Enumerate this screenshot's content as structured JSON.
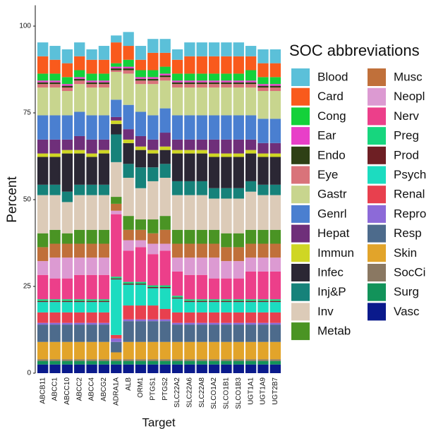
{
  "chart_data": {
    "type": "stacked_bar",
    "x_label": "Target",
    "y_label": "Percent",
    "legend_title": "SOC abbreviations",
    "categories": [
      "ABCB11",
      "ABCC1",
      "ABCC10",
      "ABCC2",
      "ABCC4",
      "ABCG2",
      "ADRA1A",
      "ALB",
      "ORM1",
      "PTGS1",
      "PTGS2",
      "SLC22A2",
      "SLC22A6",
      "SLC22A8",
      "SLCO1A2",
      "SLCO1B1",
      "SLCO1B3",
      "UGT1A1",
      "UGT1A9",
      "UGT2B7"
    ],
    "ylim": [
      0,
      106
    ],
    "yticks": [
      0,
      25,
      50,
      75,
      100
    ],
    "series": [
      {
        "name": "Blood",
        "color": "#5bc0d9",
        "values": [
          4,
          4,
          4,
          4,
          3,
          4,
          2,
          4,
          4,
          4,
          4,
          3,
          4,
          4,
          4,
          4,
          4,
          3,
          4,
          4
        ]
      },
      {
        "name": "Card",
        "color": "#f95a1c",
        "values": [
          5,
          4,
          4,
          4,
          4,
          4,
          6,
          4,
          3,
          5,
          4,
          4,
          5,
          5,
          5,
          5,
          5,
          4,
          4,
          4
        ]
      },
      {
        "name": "Cong",
        "color": "#13d13a",
        "values": [
          2,
          2,
          2,
          2,
          2,
          2,
          1,
          2,
          2,
          2,
          2,
          2,
          2,
          2,
          2,
          2,
          2,
          3,
          2,
          2
        ]
      },
      {
        "name": "Ear",
        "color": "#e83fc8",
        "values": [
          0.5,
          0.5,
          0.5,
          0.5,
          0.5,
          0.5,
          0.5,
          0.5,
          0.5,
          0.5,
          0.5,
          0.5,
          0.5,
          0.5,
          0.5,
          0.5,
          0.5,
          0.5,
          0.5,
          0.5
        ]
      },
      {
        "name": "Endo",
        "color": "#2e4015",
        "values": [
          0.5,
          0.5,
          0.5,
          0.5,
          0.5,
          0.5,
          0.5,
          0.5,
          0.5,
          0.5,
          0.5,
          0.5,
          0.5,
          0.5,
          0.5,
          0.5,
          0.5,
          0.5,
          0.5,
          0.5
        ]
      },
      {
        "name": "Eye",
        "color": "#d9737a",
        "values": [
          1,
          1,
          1,
          1,
          1,
          1,
          0.5,
          1,
          1,
          1,
          1,
          1,
          1,
          1,
          1,
          1,
          1,
          1,
          1,
          1
        ]
      },
      {
        "name": "Gastr",
        "color": "#c8d58e",
        "values": [
          8,
          8,
          7,
          8,
          8,
          8,
          8,
          9,
          8,
          9,
          8,
          8,
          8,
          8,
          8,
          8,
          8,
          8,
          8,
          8
        ]
      },
      {
        "name": "Genrl",
        "color": "#4a7fd0",
        "values": [
          7,
          7,
          7,
          7,
          7,
          7,
          5,
          7,
          7,
          7,
          7,
          7,
          7,
          7,
          7,
          7,
          7,
          7,
          7,
          7
        ]
      },
      {
        "name": "Hepat",
        "color": "#6f2f7a",
        "values": [
          4,
          4,
          3,
          4,
          4,
          3,
          1,
          3,
          3,
          3,
          4,
          3,
          3,
          3,
          4,
          4,
          4,
          3,
          3,
          3
        ]
      },
      {
        "name": "Immun",
        "color": "#cfd624",
        "values": [
          1,
          1,
          1,
          1,
          1,
          1,
          1,
          1,
          1,
          1,
          1,
          1,
          1,
          1,
          1,
          1,
          1,
          1,
          1,
          1
        ]
      },
      {
        "name": "Infec",
        "color": "#2b2734",
        "values": [
          8,
          8,
          11,
          9,
          8,
          9,
          3,
          6,
          5,
          4,
          4,
          8,
          8,
          8,
          9,
          9,
          9,
          8,
          8,
          8
        ]
      },
      {
        "name": "Inj&P",
        "color": "#16827a",
        "values": [
          3,
          3,
          3,
          3,
          3,
          3,
          8,
          4,
          6,
          4,
          4,
          4,
          4,
          4,
          3,
          3,
          3,
          3,
          3,
          3
        ]
      },
      {
        "name": "Inv",
        "color": "#dccbb8",
        "values": [
          11,
          10,
          9,
          10,
          10,
          10,
          10,
          11,
          9,
          11,
          11,
          10,
          10,
          10,
          9,
          10,
          10,
          11,
          10,
          10
        ]
      },
      {
        "name": "Metab",
        "color": "#4a9424",
        "values": [
          4,
          4,
          3,
          4,
          4,
          4,
          2,
          4,
          3,
          4,
          4,
          4,
          4,
          4,
          4,
          4,
          4,
          4,
          4,
          4
        ]
      },
      {
        "name": "Musc",
        "color": "#c0703a",
        "values": [
          4,
          4,
          4,
          4,
          4,
          4,
          2,
          3,
          3,
          3,
          4,
          4,
          4,
          4,
          4,
          4,
          4,
          4,
          4,
          4
        ]
      },
      {
        "name": "Neopl",
        "color": "#dc9ad2",
        "values": [
          4,
          6,
          6,
          5,
          5,
          5,
          1,
          3,
          2,
          3,
          2,
          4,
          5,
          5,
          6,
          5,
          5,
          4,
          4,
          4
        ]
      },
      {
        "name": "Nerv",
        "color": "#ec3f8a",
        "values": [
          7,
          6,
          6,
          7,
          7,
          7,
          18,
          9,
          10,
          9,
          10,
          7,
          7,
          7,
          6,
          6,
          6,
          8,
          8,
          8
        ]
      },
      {
        "name": "Preg",
        "color": "#17d67e",
        "values": [
          0.5,
          0.5,
          0.5,
          0.5,
          0.5,
          0.5,
          0.5,
          0.5,
          0.5,
          0.5,
          0.5,
          0.5,
          0.5,
          0.5,
          0.5,
          0.5,
          0.5,
          0.5,
          0.5,
          0.5
        ]
      },
      {
        "name": "Prod",
        "color": "#6e1f24",
        "values": [
          0.3,
          0.3,
          0.3,
          0.3,
          0.3,
          0.3,
          0.3,
          0.3,
          0.3,
          0.3,
          0.3,
          0.3,
          0.3,
          0.3,
          0.3,
          0.3,
          0.3,
          0.3,
          0.3,
          0.3
        ]
      },
      {
        "name": "Psych",
        "color": "#1cdcc0",
        "values": [
          3,
          3,
          3,
          3,
          3,
          3,
          16,
          6,
          6,
          5,
          6,
          4,
          3,
          3,
          3,
          3,
          3,
          3,
          3,
          3
        ]
      },
      {
        "name": "Renal",
        "color": "#e8404e",
        "values": [
          3,
          3,
          3,
          3,
          3,
          3,
          1,
          4,
          4,
          4,
          3,
          3,
          3,
          3,
          3,
          3,
          3,
          3,
          3,
          3
        ]
      },
      {
        "name": "Repro",
        "color": "#8c6ad8",
        "values": [
          0.5,
          0.5,
          0.5,
          0.5,
          0.5,
          0.5,
          1,
          0.5,
          0.5,
          0.5,
          0.5,
          0.5,
          0.5,
          0.5,
          0.5,
          0.5,
          0.5,
          0.5,
          0.5,
          0.5
        ]
      },
      {
        "name": "Resp",
        "color": "#4d6b8c",
        "values": [
          5,
          5,
          5,
          5,
          5,
          5,
          3,
          6,
          6,
          6,
          6,
          5,
          5,
          5,
          5,
          5,
          5,
          5,
          5,
          5
        ]
      },
      {
        "name": "Skin",
        "color": "#e2a42a",
        "values": [
          5,
          5,
          5,
          5,
          5,
          5,
          2,
          5,
          5,
          5,
          5,
          5,
          5,
          5,
          5,
          5,
          5,
          5,
          5,
          5
        ]
      },
      {
        "name": "SocCi",
        "color": "#8a7862",
        "values": [
          0.5,
          0.5,
          0.5,
          0.5,
          0.5,
          0.5,
          0.5,
          0.5,
          0.5,
          0.5,
          0.5,
          0.5,
          0.5,
          0.5,
          0.5,
          0.5,
          0.5,
          0.5,
          0.5,
          0.5
        ]
      },
      {
        "name": "Surg",
        "color": "#12935a",
        "values": [
          1,
          1,
          1,
          1,
          1,
          1,
          1,
          1,
          1,
          1,
          1,
          1,
          1,
          1,
          1,
          1,
          1,
          1,
          1,
          1
        ]
      },
      {
        "name": "Vasc",
        "color": "#0a1a8c",
        "values": [
          2.5,
          2.5,
          2.5,
          2.5,
          2.5,
          2.5,
          2.5,
          2.5,
          2.5,
          2.5,
          2.5,
          2.5,
          2.5,
          2.5,
          2.5,
          2.5,
          2.5,
          2.5,
          2.5,
          2.5
        ]
      }
    ]
  }
}
